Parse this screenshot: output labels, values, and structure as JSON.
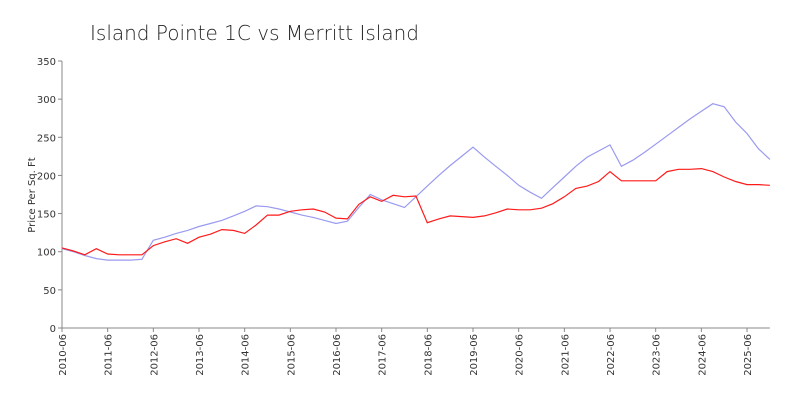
{
  "chart_data": {
    "type": "line",
    "title": "Island Pointe 1C vs Merritt Island",
    "ylabel": "Price Per Sq. Ft",
    "x": [
      "2010-06",
      "2010-09",
      "2010-12",
      "2011-03",
      "2011-06",
      "2011-09",
      "2011-12",
      "2012-03",
      "2012-06",
      "2012-09",
      "2012-12",
      "2013-03",
      "2013-06",
      "2013-09",
      "2013-12",
      "2014-03",
      "2014-06",
      "2014-09",
      "2014-12",
      "2015-03",
      "2015-06",
      "2015-09",
      "2015-12",
      "2016-03",
      "2016-06",
      "2016-09",
      "2016-12",
      "2017-03",
      "2017-06",
      "2017-09",
      "2017-12",
      "2018-03",
      "2018-06",
      "2018-09",
      "2018-12",
      "2019-03",
      "2019-06",
      "2019-09",
      "2019-12",
      "2020-03",
      "2020-06",
      "2020-09",
      "2020-12",
      "2021-03",
      "2021-06",
      "2021-09",
      "2021-12",
      "2022-03",
      "2022-06",
      "2022-09",
      "2022-12",
      "2023-03",
      "2023-06",
      "2023-09",
      "2023-12",
      "2024-03",
      "2024-06",
      "2024-09",
      "2024-12",
      "2025-03",
      "2025-06",
      "2025-09",
      "2025-12"
    ],
    "series": [
      {
        "color": "#9a9af0",
        "values": [
          104,
          100,
          95,
          91,
          89,
          89,
          89,
          90,
          115,
          119,
          124,
          128,
          133,
          137,
          141,
          147,
          153,
          160,
          159,
          156,
          152,
          148,
          145,
          141,
          137,
          140,
          158,
          175,
          168,
          163,
          158,
          172,
          186,
          200,
          213,
          225,
          237,
          224,
          212,
          200,
          187,
          178,
          170,
          184,
          198,
          212,
          224,
          232,
          240,
          212,
          220,
          230,
          241,
          252,
          263,
          274,
          284,
          294,
          290,
          270,
          255,
          235,
          221
        ]
      },
      {
        "color": "#ff1a1a",
        "values": [
          105,
          101,
          96,
          104,
          97,
          96,
          96,
          96,
          108,
          113,
          117,
          111,
          119,
          123,
          129,
          128,
          124,
          135,
          148,
          148,
          153,
          155,
          156,
          152,
          144,
          143,
          162,
          172,
          166,
          174,
          172,
          173,
          138,
          143,
          147,
          146,
          145,
          147,
          151,
          156,
          155,
          155,
          157,
          163,
          172,
          183,
          186,
          192,
          205,
          193,
          193,
          193,
          193,
          205,
          208,
          208,
          209,
          205,
          198,
          192,
          188,
          188,
          187
        ]
      }
    ],
    "xticks": [
      "2010-06",
      "2011-06",
      "2012-06",
      "2013-06",
      "2014-06",
      "2015-06",
      "2016-06",
      "2017-06",
      "2018-06",
      "2019-06",
      "2020-06",
      "2021-06",
      "2022-06",
      "2023-06",
      "2024-06",
      "2025-06"
    ],
    "ylim": [
      0,
      350
    ],
    "yticks": [
      0,
      50,
      100,
      150,
      200,
      250,
      300,
      350
    ]
  }
}
